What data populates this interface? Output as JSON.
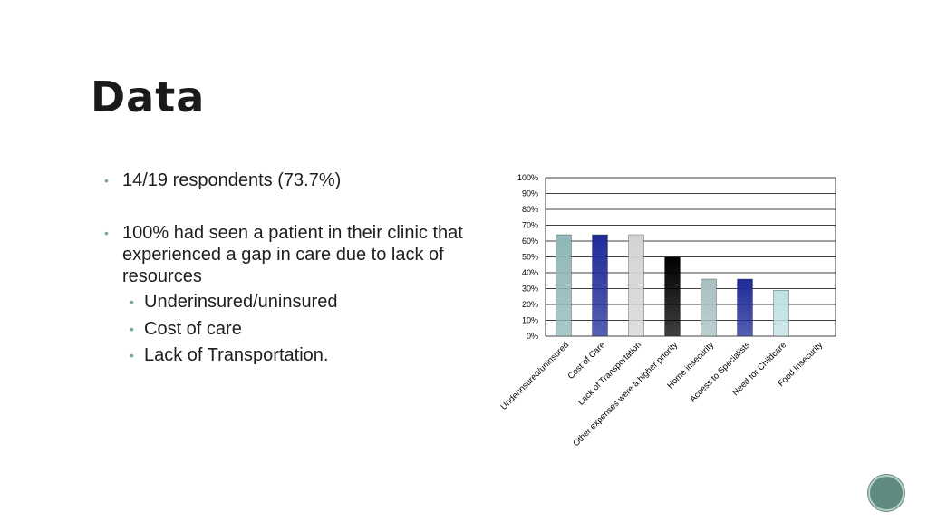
{
  "slide": {
    "title": "Data"
  },
  "bullets": {
    "b1": "14/19 respondents (73.7%)",
    "b2": "100% had seen a patient in their clinic that experienced a gap in care due to lack of resources",
    "sub": [
      "Underinsured/uninsured",
      "Cost of care",
      "Lack of Transportation."
    ]
  },
  "chart_data": {
    "type": "bar",
    "categories": [
      "Underinsured/uninsured",
      "Cost of Care",
      "Lack of Transportation",
      "Other expenses were a higher priority",
      "Home insecurity",
      "Access to Specialists",
      "Need for Childcare",
      "Food Insecurity"
    ],
    "values": [
      64,
      64,
      64,
      50,
      36,
      36,
      29,
      0
    ],
    "ylim": [
      0,
      100
    ],
    "yticks": [
      "0%",
      "10%",
      "20%",
      "30%",
      "40%",
      "50%",
      "60%",
      "70%",
      "80%",
      "90%",
      "100%"
    ],
    "grid": true,
    "colors": [
      "#8fb6b9",
      "#1f2a99",
      "#d4d4d4",
      "#000000",
      "#a8bfc1",
      "#1f2a99",
      "#bfe0e3",
      "#cccccc"
    ]
  }
}
